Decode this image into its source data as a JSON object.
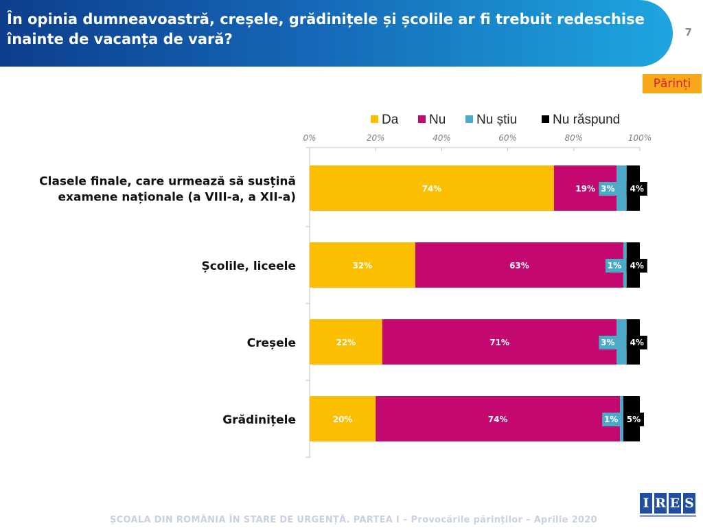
{
  "header": {
    "title": "În opinia dumneavoastră, creșele, grădinițele și școlile ar fi trebuit redeschise înainte de vacanța de vară?",
    "page_number": "7",
    "bg_colors": [
      "#0d3e8c",
      "#1ea6df"
    ]
  },
  "respondent_tag": "Părinți",
  "footer": {
    "text": "ȘCOALA DIN ROMÂNIA ÎN STARE DE URGENȚĂ. PARTEA I – Provocările părinților – Aprilie 2020"
  },
  "logo": {
    "letters": [
      "I",
      "R",
      "E",
      "S"
    ]
  },
  "chart_data": {
    "type": "bar",
    "orientation": "horizontal",
    "stacked": true,
    "categories": [
      [
        "Clasele finale, care urmează să susțină",
        "examene naționale (a VIII-a, a XII-a)"
      ],
      [
        "Școlile, liceele"
      ],
      [
        "Creșele"
      ],
      [
        "Grădinițele"
      ]
    ],
    "series": [
      {
        "name": "Da",
        "color": "#fcbe00",
        "values": [
          74,
          32,
          22,
          20
        ],
        "labels": [
          "74%",
          "32%",
          "22%",
          "20%"
        ]
      },
      {
        "name": "Nu",
        "color": "#c3086f",
        "values": [
          19,
          63,
          71,
          74
        ],
        "labels": [
          "19%",
          "63%",
          "71%",
          "74%"
        ]
      },
      {
        "name": "Nu știu",
        "color": "#4aaac8",
        "values": [
          3,
          1,
          3,
          1
        ],
        "labels": [
          "3%",
          "1%",
          "3%",
          "1%"
        ]
      },
      {
        "name": "Nu răspund",
        "color": "#000000",
        "values": [
          4,
          4,
          4,
          5
        ],
        "labels": [
          "4%",
          "4%",
          "4%",
          "5%"
        ]
      }
    ],
    "xlim": [
      0,
      100
    ],
    "xticks": [
      0,
      20,
      40,
      60,
      80,
      100
    ],
    "xtick_labels": [
      "0%",
      "20%",
      "40%",
      "60%",
      "80%",
      "100%"
    ],
    "grid": false,
    "legend_position": "top"
  }
}
